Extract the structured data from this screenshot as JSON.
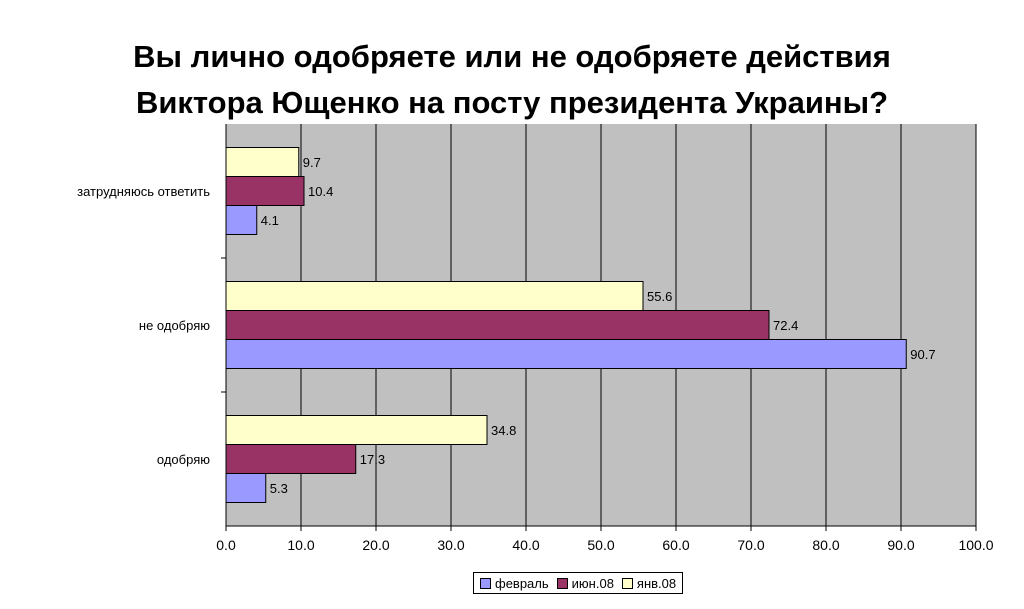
{
  "chart_data": {
    "type": "bar",
    "orientation": "horizontal",
    "title": "Вы лично одобряете или не одобряете действия Виктора Ющенко на посту президента Украины?",
    "title_lines": [
      "Вы лично одобряете или не одобряете действия",
      "Виктора Ющенко на посту президента Украины?"
    ],
    "categories": [
      "затрудняюсь ответить",
      "не одобряю",
      "одобряю"
    ],
    "series": [
      {
        "name": "янв.08",
        "color": "#FFFFCC",
        "values": [
          9.7,
          55.6,
          34.8
        ]
      },
      {
        "name": "июн.08",
        "color": "#993366",
        "values": [
          10.4,
          72.4,
          17.3
        ]
      },
      {
        "name": "февраль",
        "color": "#9999FF",
        "values": [
          4.1,
          90.7,
          5.3
        ]
      }
    ],
    "data_labels": [
      [
        "9.7",
        "10.4",
        "4.1"
      ],
      [
        "55.6",
        "72.4",
        "90.7"
      ],
      [
        "34.8",
        "17.3",
        "5.3"
      ]
    ],
    "xlim": [
      0,
      100
    ],
    "xticks": [
      "0.0",
      "10.0",
      "20.0",
      "30.0",
      "40.0",
      "50.0",
      "60.0",
      "70.0",
      "80.0",
      "90.0",
      "100.0"
    ],
    "grid": true,
    "plot_background": "#C0C0C0",
    "legend": {
      "position": "bottom",
      "items": [
        {
          "label": "февраль",
          "color": "#9999FF"
        },
        {
          "label": "июн.08",
          "color": "#993366"
        },
        {
          "label": "янв.08",
          "color": "#FFFFCC"
        }
      ]
    }
  }
}
